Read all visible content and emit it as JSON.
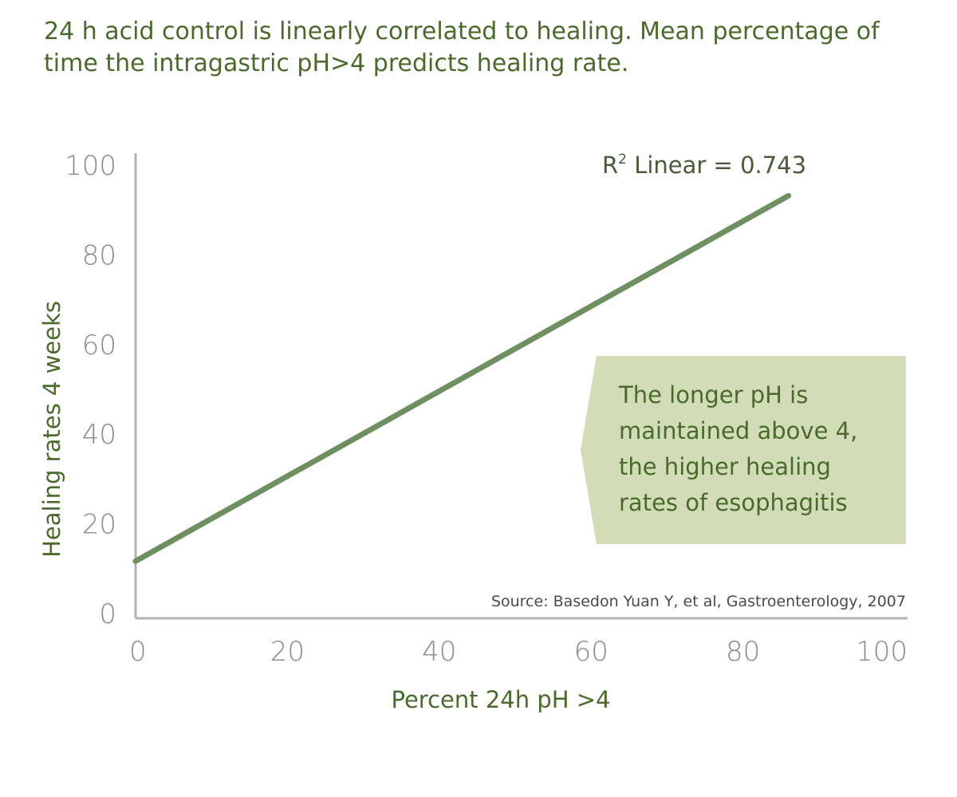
{
  "title": {
    "line1": "24 h acid control is linearly correlated to healing. Mean percentage of",
    "line2": "time the intragastric pH>4 predicts healing rate."
  },
  "chart_data": {
    "type": "line",
    "xlabel": "Percent 24h pH >4",
    "ylabel": "Healing rates 4 weeks",
    "xlim": [
      0,
      100
    ],
    "ylim": [
      0,
      100
    ],
    "x_ticks": [
      "0",
      "20",
      "40",
      "60",
      "80",
      "100"
    ],
    "y_ticks": [
      "0",
      "20",
      "40",
      "60",
      "80",
      "100"
    ],
    "series": [
      {
        "x": [
          0,
          86
        ],
        "y": [
          11.5,
          93
        ]
      }
    ],
    "annotation_r2": {
      "prefix": "R",
      "sup": "2",
      "text": " Linear = 0.743"
    },
    "callout": {
      "lines": [
        "The longer pH is",
        "maintained above 4,",
        "the higher healing",
        "rates of esophagitis"
      ]
    },
    "source": "Source: Basedon Yuan Y, et al, Gastroenterology, 2007",
    "grid": false,
    "colors": {
      "line": "#6e9060",
      "axis": "#b3b3b3",
      "callout_bg": "#d2ddb8",
      "text_green": "#4a6a2c"
    }
  }
}
